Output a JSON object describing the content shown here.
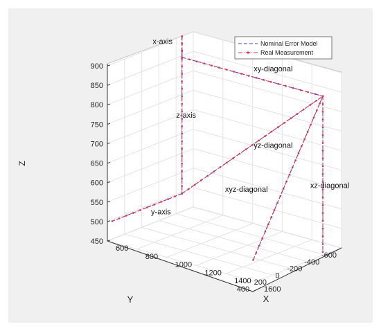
{
  "chart_data": {
    "type": "line",
    "title": "",
    "xlabel": "X",
    "ylabel": "Y",
    "zlabel": "Z",
    "xlim": [
      600,
      1600
    ],
    "ylim": [
      -600,
      400
    ],
    "zlim": [
      450,
      900
    ],
    "x_ticks": [
      "600",
      "800",
      "1000",
      "1200",
      "1400",
      "1600"
    ],
    "y_ticks": [
      "-600",
      "-400",
      "-200",
      "0",
      "200",
      "400"
    ],
    "z_ticks": [
      "450",
      "500",
      "550",
      "600",
      "650",
      "700",
      "750",
      "800",
      "850",
      "900"
    ],
    "grid": true,
    "legend_position": "top-right",
    "legend": [
      {
        "label": "Nominal Error Model",
        "color": "#3b3bdc",
        "style": "dashed"
      },
      {
        "label": "Real Measurement",
        "color": "#e0304e",
        "style": "dash-dot with dot markers"
      }
    ],
    "segments": [
      {
        "label": "x-axis",
        "points": [
          [
            616,
            -441,
            904
          ],
          [
            616,
            -441,
            850
          ]
        ]
      },
      {
        "label": "xy-diagonal",
        "points": [
          [
            616,
            -441,
            850
          ],
          [
            1566,
            -441,
            850
          ]
        ]
      },
      {
        "label": "z-axis",
        "points": [
          [
            616,
            -441,
            904
          ],
          [
            616,
            -441,
            500
          ]
        ]
      },
      {
        "label": "yz-diagonal",
        "points": [
          [
            616,
            -441,
            500
          ],
          [
            1566,
            -441,
            850
          ]
        ]
      },
      {
        "label": "xyz-diagonal",
        "points": [
          [
            1566,
            370,
            500
          ],
          [
            1566,
            -441,
            850
          ]
        ]
      },
      {
        "label": "xz-diagonal",
        "points": [
          [
            1566,
            -441,
            850
          ],
          [
            1566,
            -441,
            450
          ]
        ]
      },
      {
        "label": "y-axis",
        "points": [
          [
            616,
            -441,
            500
          ],
          [
            616,
            370,
            500
          ]
        ]
      }
    ]
  }
}
